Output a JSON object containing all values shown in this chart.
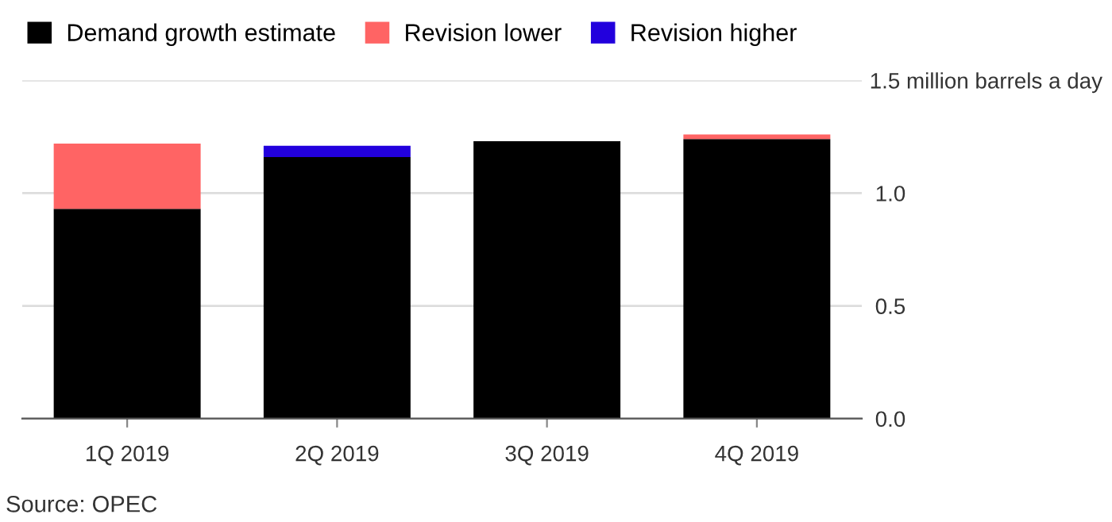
{
  "chart_data": {
    "type": "bar",
    "stacked": true,
    "categories": [
      "1Q 2019",
      "2Q 2019",
      "3Q 2019",
      "4Q 2019"
    ],
    "series": [
      {
        "name": "Demand growth estimate",
        "color": "#000000",
        "values": [
          0.93,
          1.16,
          1.23,
          1.24
        ]
      },
      {
        "name": "Revision lower",
        "color": "#ff6464",
        "values": [
          0.29,
          null,
          null,
          0.02
        ]
      },
      {
        "name": "Revision higher",
        "color": "#2200dd",
        "values": [
          null,
          0.05,
          null,
          null
        ]
      }
    ],
    "ylim": [
      0,
      1.5
    ],
    "yticks": [
      {
        "value": 0,
        "label": "0.0"
      },
      {
        "value": 0.5,
        "label": "0.5"
      },
      {
        "value": 1,
        "label": "1.0"
      },
      {
        "value": 1.5,
        "label": "1.5 million barrels a day"
      }
    ],
    "grid": "y",
    "legend": "top left",
    "annotations": [
      "Source: OPEC"
    ]
  }
}
